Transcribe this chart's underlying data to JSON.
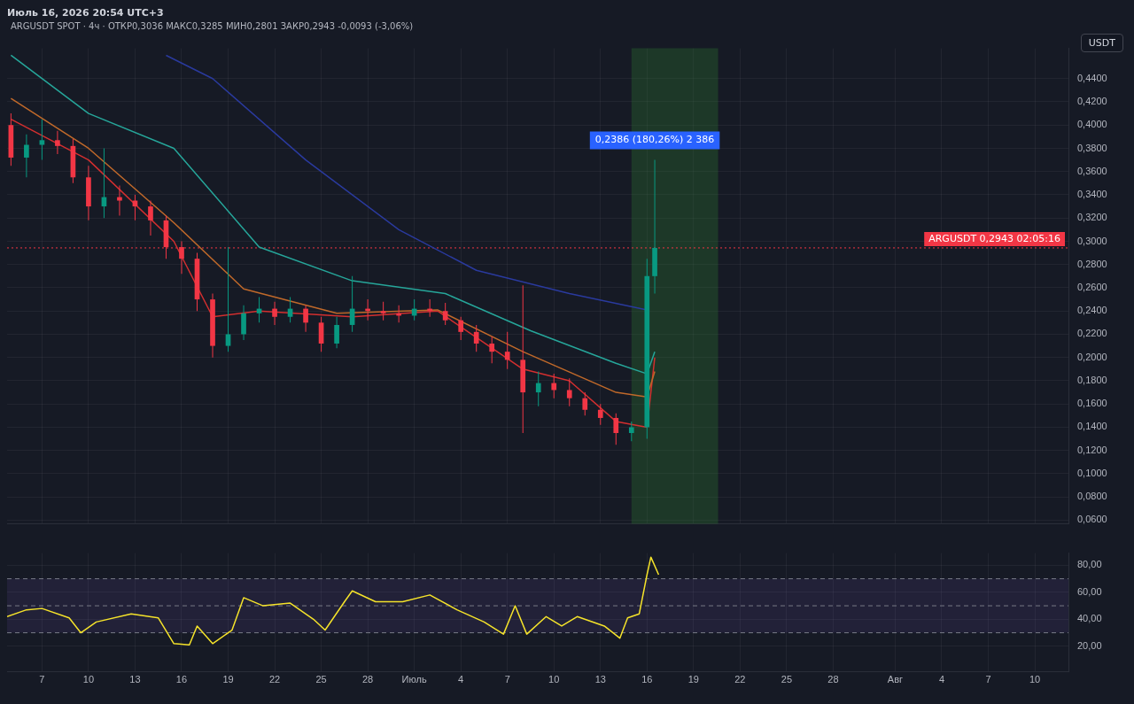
{
  "chart_data": [
    {
      "type": "candlestick",
      "title": "Июль 16, 2026 20:54 UTC+3",
      "subtitle": "ARGUSDT SPOT · 4ч · ОТКР0,3036 МАКС0,3285 МИН0,2801 ЗАКР0,2943 -0,0093 (-3,06%)",
      "ylabel": "USDT",
      "x": [
        "2026-06-05",
        "2026-06-06",
        "2026-06-07",
        "2026-06-08",
        "2026-06-09",
        "2026-06-10",
        "2026-06-11",
        "2026-06-12",
        "2026-06-13",
        "2026-06-14",
        "2026-06-15",
        "2026-06-16",
        "2026-06-17",
        "2026-06-18",
        "2026-06-19",
        "2026-06-20",
        "2026-06-21",
        "2026-06-22",
        "2026-06-23",
        "2026-06-24",
        "2026-06-25",
        "2026-06-26",
        "2026-06-27",
        "2026-06-28",
        "2026-06-29",
        "2026-06-30",
        "2026-07-01",
        "2026-07-02",
        "2026-07-03",
        "2026-07-04",
        "2026-07-05",
        "2026-07-06",
        "2026-07-07",
        "2026-07-08",
        "2026-07-09",
        "2026-07-10",
        "2026-07-11",
        "2026-07-12",
        "2026-07-13",
        "2026-07-14",
        "2026-07-15",
        "2026-07-16T00:00",
        "2026-07-16T12:00"
      ],
      "ohlc": [
        [
          0.4,
          0.41,
          0.365,
          0.372
        ],
        [
          0.372,
          0.392,
          0.355,
          0.383
        ],
        [
          0.383,
          0.405,
          0.37,
          0.387
        ],
        [
          0.387,
          0.395,
          0.375,
          0.382
        ],
        [
          0.382,
          0.388,
          0.35,
          0.355
        ],
        [
          0.355,
          0.365,
          0.318,
          0.33
        ],
        [
          0.33,
          0.38,
          0.32,
          0.338
        ],
        [
          0.338,
          0.348,
          0.322,
          0.335
        ],
        [
          0.335,
          0.34,
          0.318,
          0.33
        ],
        [
          0.33,
          0.335,
          0.305,
          0.318
        ],
        [
          0.318,
          0.322,
          0.285,
          0.295
        ],
        [
          0.295,
          0.3,
          0.272,
          0.285
        ],
        [
          0.285,
          0.29,
          0.24,
          0.25
        ],
        [
          0.25,
          0.255,
          0.2,
          0.21
        ],
        [
          0.21,
          0.295,
          0.205,
          0.22
        ],
        [
          0.22,
          0.245,
          0.215,
          0.238
        ],
        [
          0.238,
          0.252,
          0.23,
          0.242
        ],
        [
          0.242,
          0.248,
          0.228,
          0.235
        ],
        [
          0.235,
          0.252,
          0.23,
          0.242
        ],
        [
          0.242,
          0.245,
          0.222,
          0.23
        ],
        [
          0.23,
          0.235,
          0.205,
          0.212
        ],
        [
          0.212,
          0.235,
          0.208,
          0.228
        ],
        [
          0.228,
          0.27,
          0.222,
          0.242
        ],
        [
          0.242,
          0.25,
          0.232,
          0.24
        ],
        [
          0.24,
          0.248,
          0.232,
          0.238
        ],
        [
          0.238,
          0.245,
          0.23,
          0.236
        ],
        [
          0.236,
          0.25,
          0.232,
          0.242
        ],
        [
          0.242,
          0.25,
          0.235,
          0.24
        ],
        [
          0.24,
          0.247,
          0.228,
          0.232
        ],
        [
          0.232,
          0.235,
          0.215,
          0.222
        ],
        [
          0.222,
          0.228,
          0.205,
          0.212
        ],
        [
          0.212,
          0.218,
          0.195,
          0.205
        ],
        [
          0.205,
          0.222,
          0.19,
          0.198
        ],
        [
          0.198,
          0.262,
          0.135,
          0.17
        ],
        [
          0.17,
          0.188,
          0.158,
          0.178
        ],
        [
          0.178,
          0.186,
          0.165,
          0.172
        ],
        [
          0.172,
          0.182,
          0.158,
          0.165
        ],
        [
          0.165,
          0.17,
          0.15,
          0.155
        ],
        [
          0.155,
          0.16,
          0.142,
          0.148
        ],
        [
          0.148,
          0.152,
          0.125,
          0.135
        ],
        [
          0.135,
          0.145,
          0.128,
          0.14
        ],
        [
          0.14,
          0.285,
          0.13,
          0.27
        ],
        [
          0.27,
          0.37,
          0.255,
          0.2943
        ]
      ],
      "series": [
        {
          "type": "line",
          "color": "#26a69a",
          "x": [
            "2026-06-05",
            "2026-06-10",
            "2026-06-15T12:00",
            "2026-06-21",
            "2026-06-27",
            "2026-07-03",
            "2026-07-08T12:00",
            "2026-07-14",
            "2026-07-16",
            "2026-07-16T12:00"
          ],
          "values": [
            0.46,
            0.41,
            0.38,
            0.295,
            0.266,
            0.255,
            0.223,
            0.195,
            0.186,
            0.205
          ]
        },
        {
          "type": "line",
          "color": "#c0692a",
          "x": [
            "2026-06-05",
            "2026-06-10",
            "2026-06-15T12:00",
            "2026-06-20",
            "2026-06-26",
            "2026-07-02T12:00",
            "2026-07-08",
            "2026-07-14",
            "2026-07-16",
            "2026-07-16T12:00"
          ],
          "values": [
            0.423,
            0.38,
            0.316,
            0.259,
            0.238,
            0.241,
            0.205,
            0.17,
            0.166,
            0.188
          ]
        },
        {
          "type": "line",
          "color": "#2a3a9e",
          "x": [
            "2026-06-15",
            "2026-06-18",
            "2026-06-24",
            "2026-06-30",
            "2026-07-05",
            "2026-07-11",
            "2026-07-16"
          ],
          "values": [
            0.46,
            0.44,
            0.37,
            0.31,
            0.275,
            0.255,
            0.241
          ]
        },
        {
          "type": "line",
          "color": "#d32f2f",
          "x": [
            "2026-06-05",
            "2026-06-10",
            "2026-06-15T12:00",
            "2026-06-18",
            "2026-06-21",
            "2026-06-27",
            "2026-07-02T12:00",
            "2026-07-08",
            "2026-07-11",
            "2026-07-14",
            "2026-07-16",
            "2026-07-16T12:00"
          ],
          "values": [
            0.405,
            0.37,
            0.3,
            0.235,
            0.24,
            0.235,
            0.24,
            0.19,
            0.18,
            0.145,
            0.14,
            0.2
          ]
        }
      ],
      "xlim": [
        "2026-06-04T18:00",
        "2026-08-12T04:00"
      ],
      "ylim": [
        0.057,
        0.466
      ],
      "yticks": [
        {
          "value": 0.06,
          "label": "0,0600"
        },
        {
          "value": 0.08,
          "label": "0,0800"
        },
        {
          "value": 0.1,
          "label": "0,1000"
        },
        {
          "value": 0.12,
          "label": "0,1200"
        },
        {
          "value": 0.14,
          "label": "0,1400"
        },
        {
          "value": 0.16,
          "label": "0,1600"
        },
        {
          "value": 0.18,
          "label": "0,1800"
        },
        {
          "value": 0.2,
          "label": "0,2000"
        },
        {
          "value": 0.22,
          "label": "0,2200"
        },
        {
          "value": 0.24,
          "label": "0,2400"
        },
        {
          "value": 0.26,
          "label": "0,2600"
        },
        {
          "value": 0.28,
          "label": "0,2800"
        },
        {
          "value": 0.3,
          "label": "0,3000"
        },
        {
          "value": 0.32,
          "label": "0,3200"
        },
        {
          "value": 0.34,
          "label": "0,3400"
        },
        {
          "value": 0.36,
          "label": "0,3600"
        },
        {
          "value": 0.38,
          "label": "0,3800"
        },
        {
          "value": 0.4,
          "label": "0,4000"
        },
        {
          "value": 0.42,
          "label": "0,4200"
        },
        {
          "value": 0.44,
          "label": "0,4400"
        }
      ],
      "tick_labels": "y",
      "grid": true,
      "ref_lines": [
        {
          "axis": "y",
          "value": 0.2943,
          "label": "ARGUSDT 0,2943 02:05:16",
          "color": "#f23645",
          "line_style": "dotted"
        }
      ],
      "bands": [
        {
          "axis": "x",
          "from": "2026-07-15",
          "to": "2026-07-20T14:00",
          "color": "#2e7d32"
        }
      ],
      "annotations": [
        {
          "text": "0,2386 (180,26%) 2 386",
          "x": "2026-07-16T12:00",
          "y": 0.37
        }
      ]
    },
    {
      "type": "line",
      "series": [
        {
          "color": "#f5e32a",
          "x": [
            "2026-06-04T18:00",
            "2026-06-06T00:00",
            "2026-06-07T00:00",
            "2026-06-08T18:00",
            "2026-06-09T12:00",
            "2026-06-10T12:00",
            "2026-06-12T18:00",
            "2026-06-14T12:00",
            "2026-06-15T12:00",
            "2026-06-16T12:00",
            "2026-06-17T00:00",
            "2026-06-18T00:00",
            "2026-06-19T06:00",
            "2026-06-20T00:00",
            "2026-06-21T06:00",
            "2026-06-23T00:00",
            "2026-06-24T12:00",
            "2026-06-25T06:00",
            "2026-06-26T12:00",
            "2026-06-27T00:00",
            "2026-06-28T12:00",
            "2026-06-30T06:00",
            "2026-07-02T00:00",
            "2026-07-03T18:00",
            "2026-07-05T12:00",
            "2026-07-06T18:00",
            "2026-07-07T12:00",
            "2026-07-08T06:00",
            "2026-07-09T12:00",
            "2026-07-10T12:00",
            "2026-07-11T12:00",
            "2026-07-13T06:00",
            "2026-07-14T06:00",
            "2026-07-14T18:00",
            "2026-07-15T12:00",
            "2026-07-16T00:00",
            "2026-07-16T06:00",
            "2026-07-16T18:00"
          ],
          "values": [
            42,
            47,
            48,
            41,
            30,
            38,
            44,
            41,
            22,
            21,
            35,
            22,
            32,
            56,
            50,
            52,
            40,
            32,
            53,
            61,
            53,
            53,
            58,
            47,
            38,
            29,
            50,
            29,
            42,
            35,
            42,
            35,
            26,
            41,
            44,
            73,
            86,
            73
          ]
        }
      ],
      "xlim": [
        "2026-06-04T18:00",
        "2026-08-12T04:00"
      ],
      "xticks": [
        {
          "value": "2026-06-07",
          "label": "7"
        },
        {
          "value": "2026-06-10",
          "label": "10"
        },
        {
          "value": "2026-06-13",
          "label": "13"
        },
        {
          "value": "2026-06-16",
          "label": "16"
        },
        {
          "value": "2026-06-19",
          "label": "19"
        },
        {
          "value": "2026-06-22",
          "label": "22"
        },
        {
          "value": "2026-06-25",
          "label": "25"
        },
        {
          "value": "2026-06-28",
          "label": "28"
        },
        {
          "value": "2026-07-01",
          "label": "Июль"
        },
        {
          "value": "2026-07-04",
          "label": "4"
        },
        {
          "value": "2026-07-07",
          "label": "7"
        },
        {
          "value": "2026-07-10",
          "label": "10"
        },
        {
          "value": "2026-07-13",
          "label": "13"
        },
        {
          "value": "2026-07-16",
          "label": "16"
        },
        {
          "value": "2026-07-19",
          "label": "19"
        },
        {
          "value": "2026-07-22",
          "label": "22"
        },
        {
          "value": "2026-07-25",
          "label": "25"
        },
        {
          "value": "2026-07-28",
          "label": "28"
        },
        {
          "value": "2026-08-01",
          "label": "Авг"
        },
        {
          "value": "2026-08-04",
          "label": "4"
        },
        {
          "value": "2026-08-07",
          "label": "7"
        },
        {
          "value": "2026-08-10",
          "label": "10"
        }
      ],
      "ylim": [
        1,
        89
      ],
      "yticks": [
        {
          "value": 20,
          "label": "20,00"
        },
        {
          "value": 40,
          "label": "40,00"
        },
        {
          "value": 60,
          "label": "60,00"
        },
        {
          "value": 80,
          "label": "80,00"
        }
      ],
      "grid": true,
      "ref_lines": [
        {
          "axis": "y",
          "value": 70,
          "color": "#787b86",
          "line_style": "dashed"
        },
        {
          "axis": "y",
          "value": 50,
          "color": "#787b86",
          "line_style": "dashed"
        },
        {
          "axis": "y",
          "value": 30,
          "color": "#787b86",
          "line_style": "dashed"
        }
      ],
      "bands": [
        {
          "axis": "y",
          "from": 30,
          "to": 70,
          "color": "#7e57c2"
        }
      ]
    }
  ]
}
